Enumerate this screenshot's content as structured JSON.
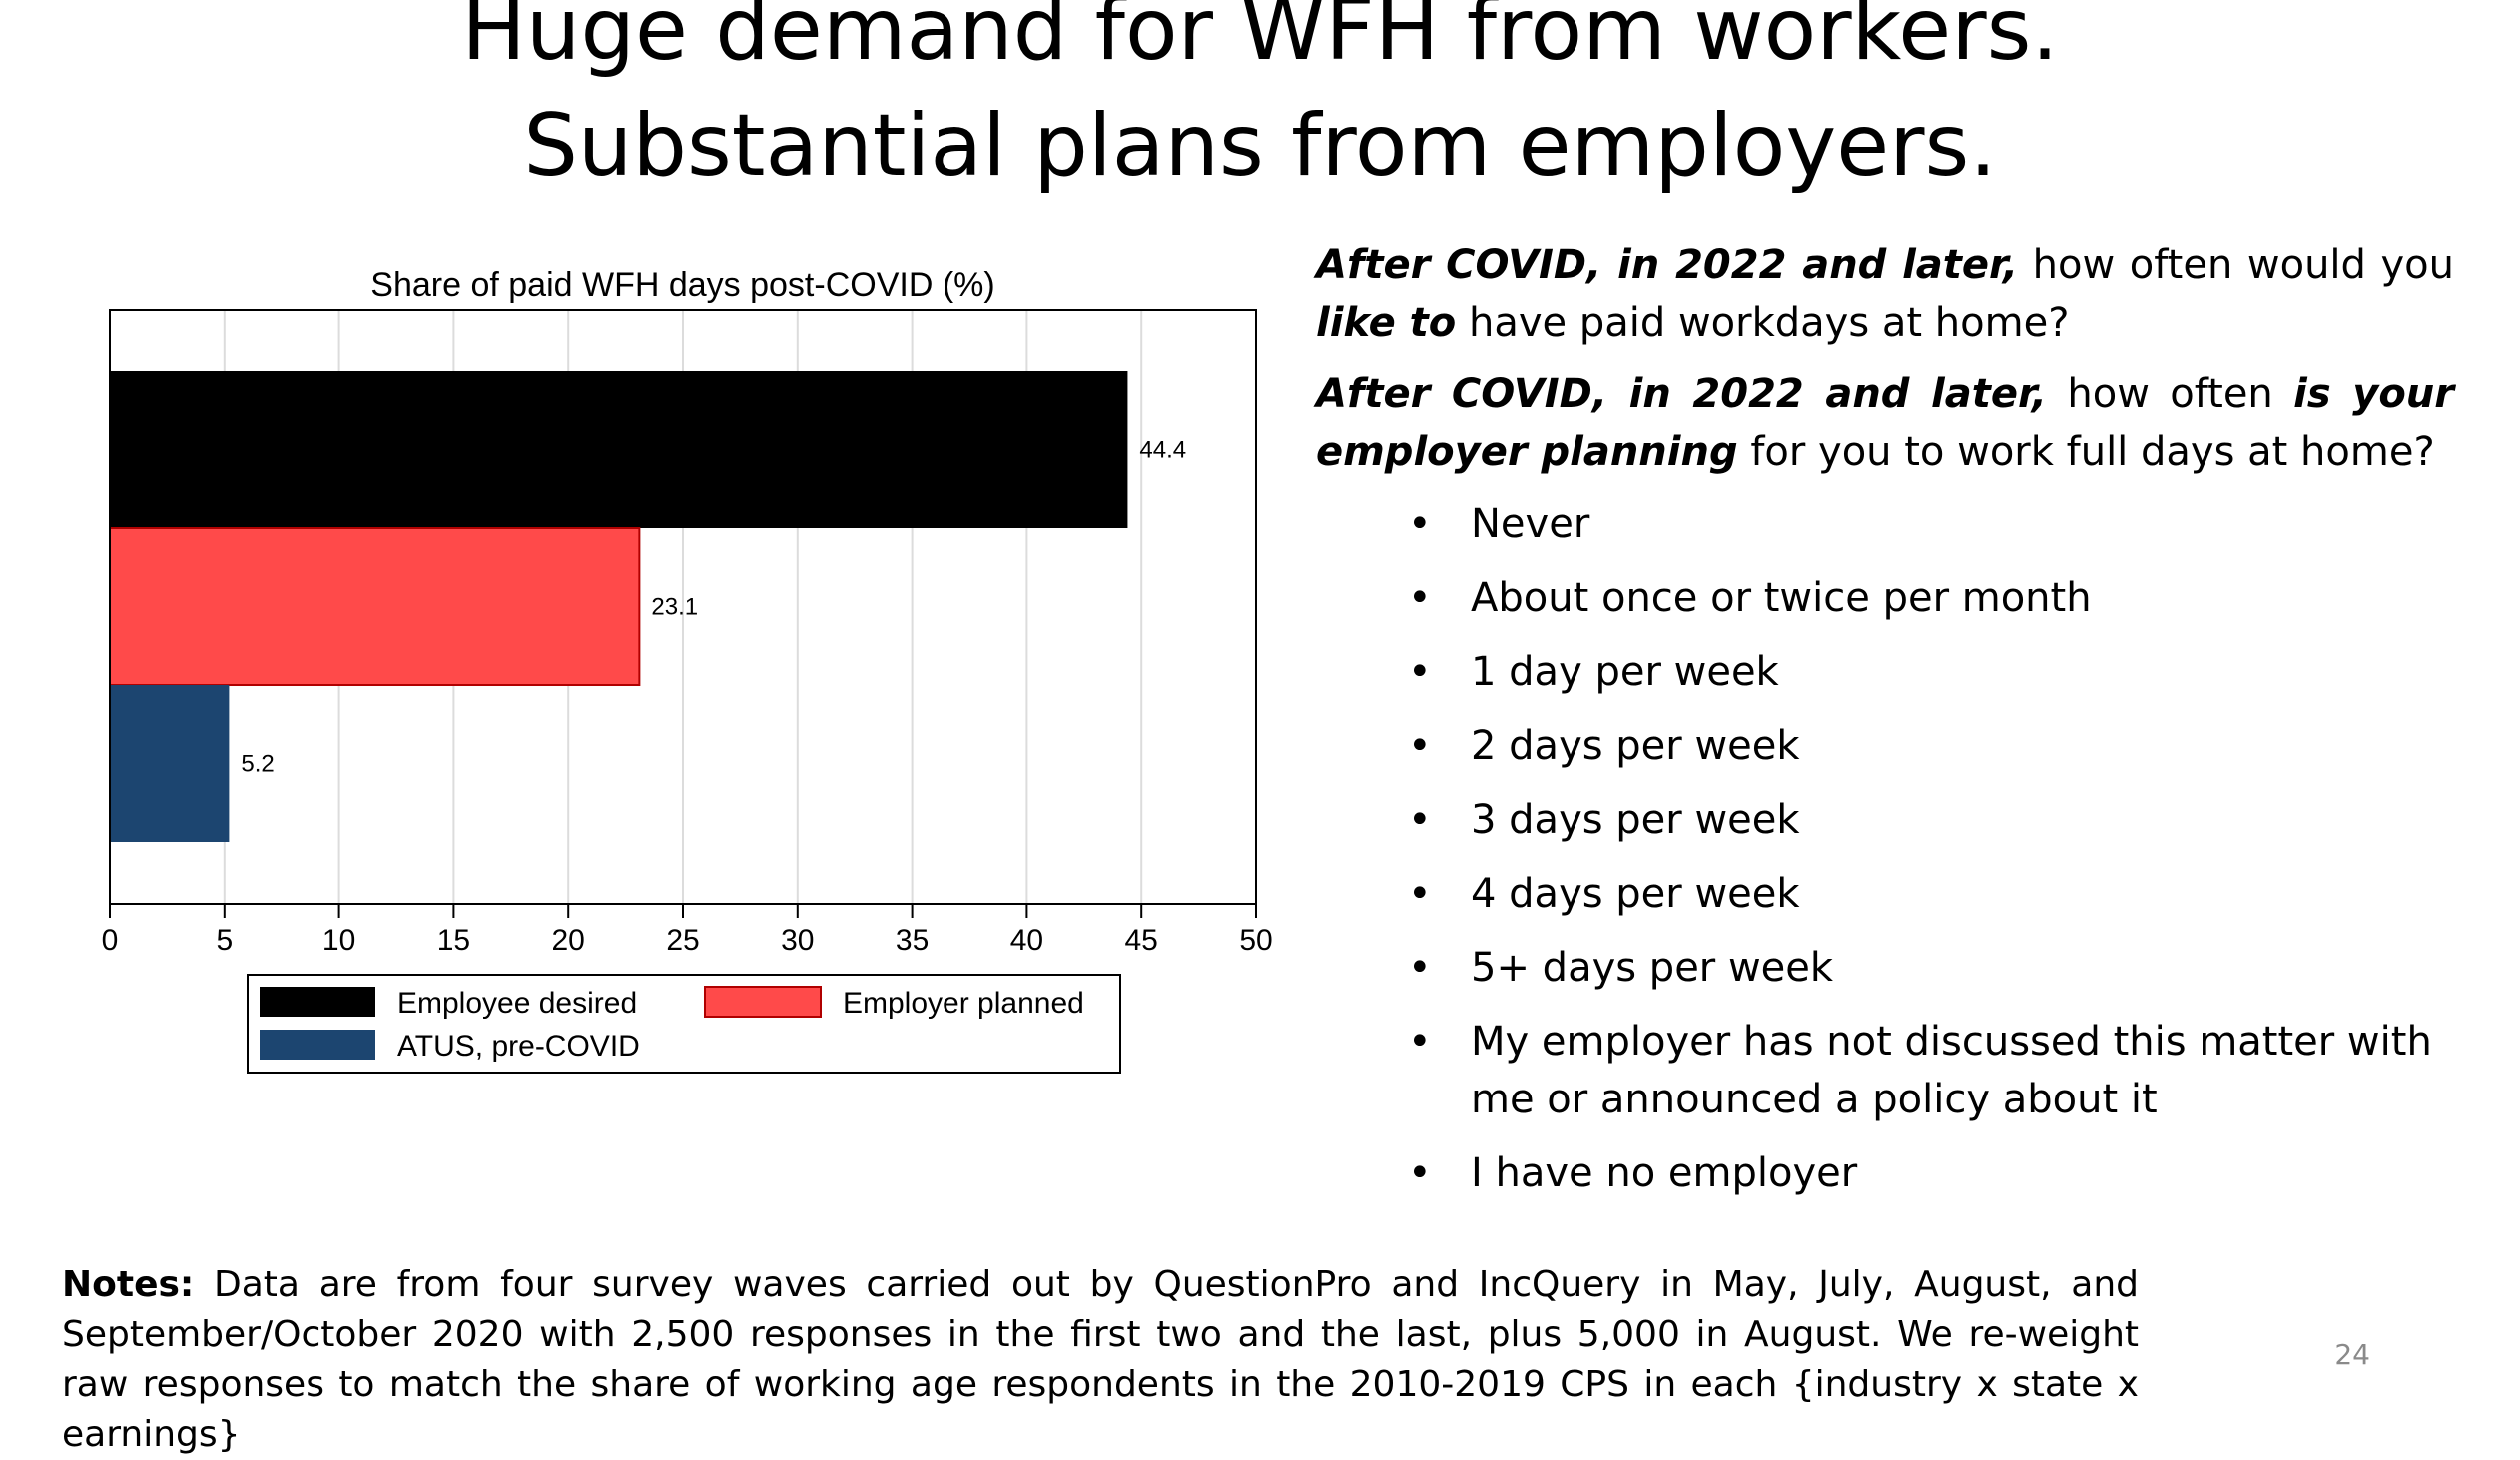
{
  "slide": {
    "title_line_1": "Huge demand for WFH from workers.",
    "title_line_2": "Substantial plans from employers.",
    "page_number": "24"
  },
  "question_1": {
    "part_1": "After COVID, in 2022 and later,",
    "part_2": " how often would you ",
    "part_3": "like to",
    "part_4": " have paid workdays at home?"
  },
  "question_2": {
    "part_1": "After COVID, in 2022 and later,",
    "part_2": " how often ",
    "part_3": "is your employer planning",
    "part_4": " for you to work full days at home?"
  },
  "answer_options": [
    "Never",
    "About once or twice per month",
    "1 day per week",
    "2 days per week",
    "3 days per week",
    "4 days per week",
    "5+ days per week",
    "My employer has not discussed this matter with me or announced a policy about it",
    "I have no employer"
  ],
  "bullet_char": "•",
  "notes": {
    "label": "Notes:",
    "text": " Data are from four survey waves carried out by QuestionPro and IncQuery in May, July, August, and September/October 2020 with 2,500 responses in the first two and the last, plus 5,000 in August. We re-weight raw responses to match the share of working age respondents in the 2010-2019 CPS in each {industry x state x earnings}"
  },
  "chart_data": {
    "type": "bar",
    "orientation": "horizontal",
    "title": "Share of paid WFH days post-COVID (%)",
    "xlabel": "",
    "ylabel": "",
    "xlim": [
      0,
      50
    ],
    "xticks": [
      0,
      5,
      10,
      15,
      20,
      25,
      30,
      35,
      40,
      45,
      50
    ],
    "grid": "vertical lines at each x tick",
    "legend_position": "bottom",
    "series": [
      {
        "name": "Employee desired",
        "value": 44.4,
        "label": "44.4",
        "color": "#000000"
      },
      {
        "name": "Employer planned",
        "value": 23.1,
        "label": "23.1",
        "color": "#ff4a4a"
      },
      {
        "name": "ATUS, pre-COVID",
        "value": 5.2,
        "label": "5.2",
        "color": "#1c4570"
      }
    ]
  }
}
